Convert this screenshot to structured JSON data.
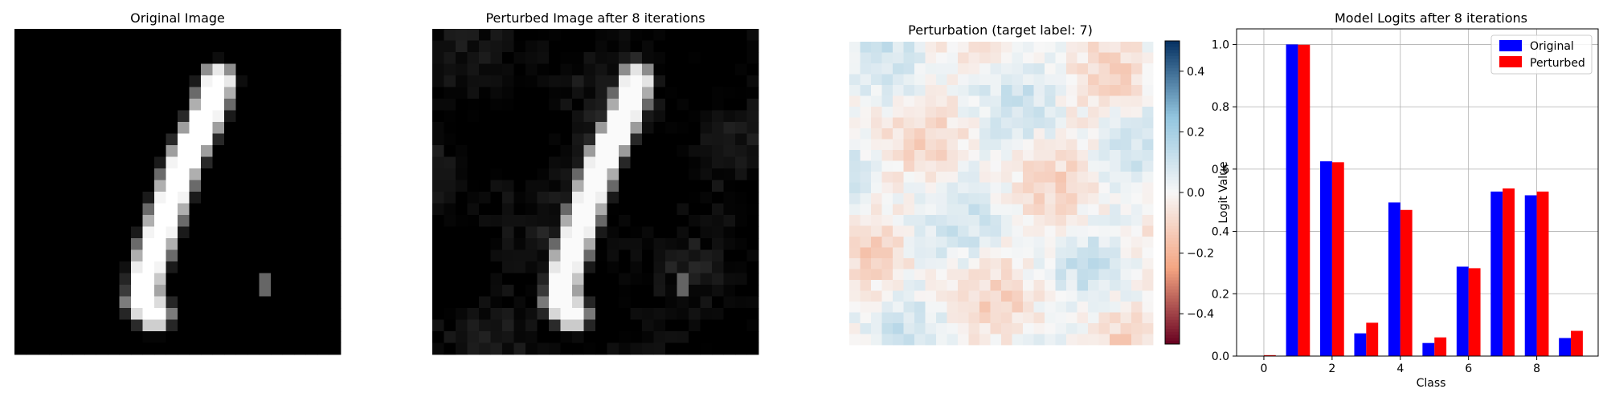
{
  "colors": {
    "original": "#0000ff",
    "perturbed": "#ff0000",
    "colormap_negative": "#67001f",
    "colormap_zero": "#f7f7f7",
    "colormap_positive": "#053061",
    "grid": "#b0b0b0"
  },
  "chart_data": [
    {
      "type": "heatmap",
      "title": "Original Image",
      "colormap": "gray",
      "grid_size": [
        28,
        28
      ],
      "digit_strokes": [
        {
          "c": 17,
          "r": 4
        },
        {
          "c": 16,
          "r": 7
        },
        {
          "c": 15,
          "r": 9
        },
        {
          "c": 14,
          "r": 11
        },
        {
          "c": 13,
          "r": 14
        },
        {
          "c": 12,
          "r": 17
        },
        {
          "c": 11,
          "r": 20
        },
        {
          "c": 10.5,
          "r": 23
        },
        {
          "c": 11.5,
          "r": 24
        }
      ],
      "artifact": {
        "col": 21,
        "row": 21
      }
    },
    {
      "type": "heatmap",
      "title": "Perturbed Image after 8 iterations",
      "colormap": "gray",
      "grid_size": [
        28,
        28
      ],
      "artifact": {
        "col": 21,
        "row": 21
      }
    },
    {
      "type": "heatmap",
      "title": "Perturbation (target label: 7)",
      "colormap": "RdBu",
      "grid_size": [
        28,
        28
      ],
      "colorbar": {
        "range": [
          -0.5,
          0.5
        ],
        "ticks": [
          0.4,
          0.2,
          0.0,
          -0.2,
          -0.4
        ],
        "tick_labels": [
          "0.4",
          "0.2",
          "0.0",
          "−0.2",
          "−0.4"
        ]
      }
    },
    {
      "type": "bar",
      "title": "Model Logits after 8 iterations",
      "xlabel": "Class",
      "ylabel": "Logit Value",
      "categories": [
        0,
        1,
        2,
        3,
        4,
        5,
        6,
        7,
        8,
        9
      ],
      "xticks": [
        0,
        2,
        4,
        6,
        8
      ],
      "ylim": [
        0,
        1.05
      ],
      "yticks": [
        0.0,
        0.2,
        0.4,
        0.6,
        0.8,
        1.0
      ],
      "ytick_labels": [
        "0.0",
        "0.2",
        "0.4",
        "0.6",
        "0.8",
        "1.0"
      ],
      "grid": true,
      "legend_position": "top-right",
      "series": [
        {
          "name": "Original",
          "values": [
            0.0,
            1.0,
            0.625,
            0.073,
            0.493,
            0.042,
            0.287,
            0.528,
            0.516,
            0.058
          ]
        },
        {
          "name": "Perturbed",
          "values": [
            0.003,
            0.999,
            0.622,
            0.107,
            0.469,
            0.06,
            0.282,
            0.538,
            0.528,
            0.081
          ]
        }
      ]
    }
  ]
}
